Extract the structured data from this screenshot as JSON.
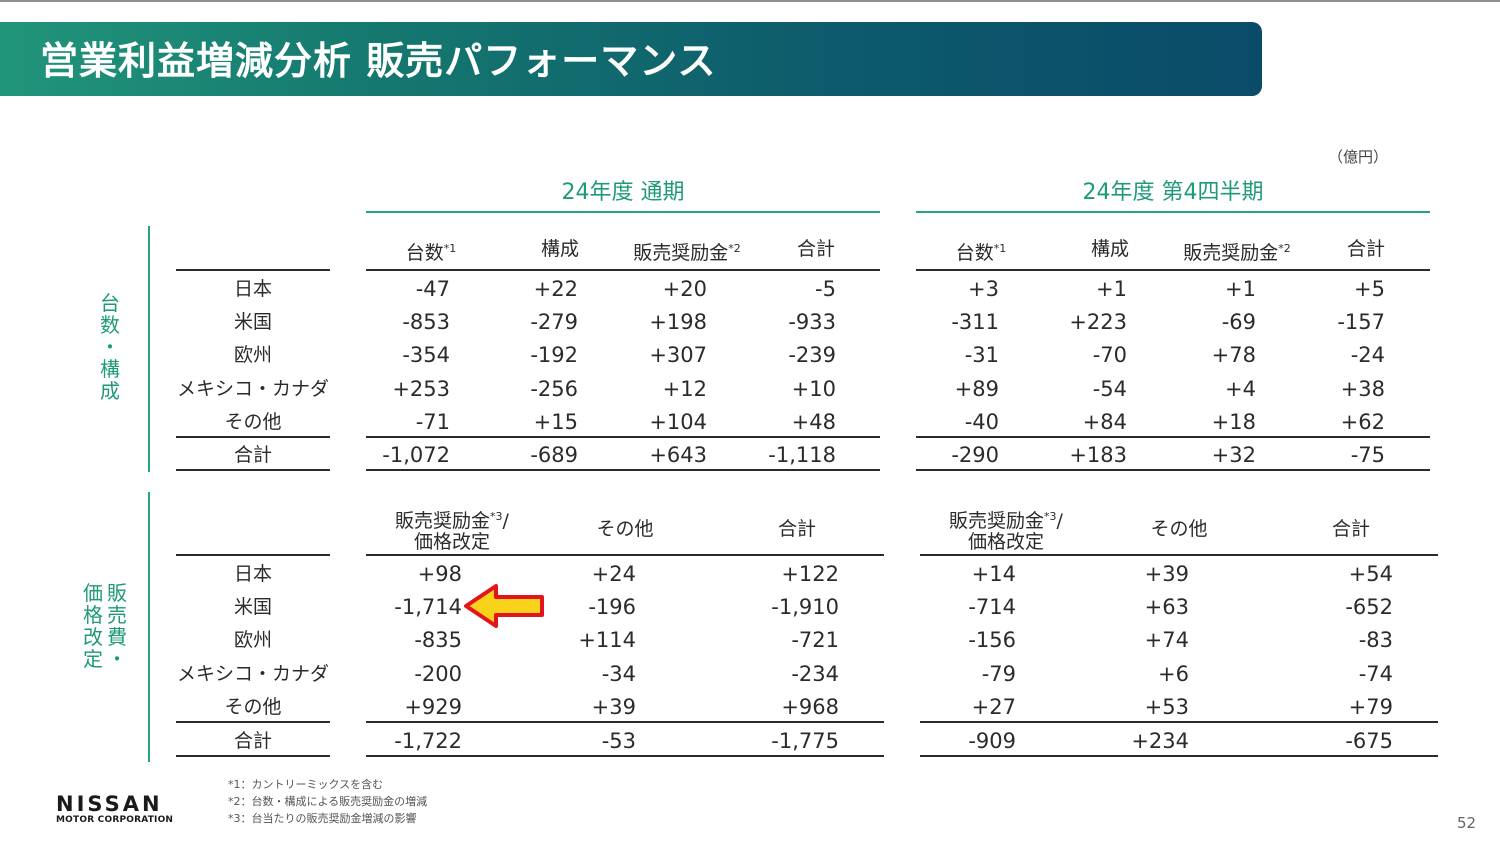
{
  "title": "営業利益増減分析 販売パフォーマンス",
  "unit": "（億円）",
  "periods": {
    "fy": "24年度 通期",
    "q4": "24年度 第4四半期"
  },
  "section_labels": {
    "top": [
      "台",
      "数",
      "・",
      "構",
      "成"
    ],
    "bottom_right": [
      "販",
      "売",
      "費",
      "・"
    ],
    "bottom_left": [
      "価",
      "格",
      "改",
      "定"
    ]
  },
  "top_headers": [
    {
      "text": "台数",
      "sup": "*1"
    },
    {
      "text": "構成",
      "sup": ""
    },
    {
      "text": "販売奨励金",
      "sup": "*2"
    },
    {
      "text": "合計",
      "sup": ""
    }
  ],
  "bottom_headers": [
    {
      "line1": "販売奨励金",
      "sup": "*3",
      "tail": "/",
      "line2": "価格改定"
    },
    {
      "line1": "その他"
    },
    {
      "line1": "合計"
    }
  ],
  "row_labels": [
    "日本",
    "米国",
    "欧州",
    "メキシコ・カナダ",
    "その他",
    "合計"
  ],
  "top_fy": [
    [
      "-47",
      "+22",
      "+20",
      "-5"
    ],
    [
      "-853",
      "-279",
      "+198",
      "-933"
    ],
    [
      "-354",
      "-192",
      "+307",
      "-239"
    ],
    [
      "+253",
      "-256",
      "+12",
      "+10"
    ],
    [
      "-71",
      "+15",
      "+104",
      "+48"
    ],
    [
      "-1,072",
      "-689",
      "+643",
      "-1,118"
    ]
  ],
  "top_q4": [
    [
      "+3",
      "+1",
      "+1",
      "+5"
    ],
    [
      "-311",
      "+223",
      "-69",
      "-157"
    ],
    [
      "-31",
      "-70",
      "+78",
      "-24"
    ],
    [
      "+89",
      "-54",
      "+4",
      "+38"
    ],
    [
      "-40",
      "+84",
      "+18",
      "+62"
    ],
    [
      "-290",
      "+183",
      "+32",
      "-75"
    ]
  ],
  "bottom_fy": [
    [
      "+98",
      "+24",
      "+122"
    ],
    [
      "-1,714",
      "-196",
      "-1,910"
    ],
    [
      "-835",
      "+114",
      "-721"
    ],
    [
      "-200",
      "-34",
      "-234"
    ],
    [
      "+929",
      "+39",
      "+968"
    ],
    [
      "-1,722",
      "-53",
      "-1,775"
    ]
  ],
  "bottom_q4": [
    [
      "+14",
      "+39",
      "+54"
    ],
    [
      "-714",
      "+63",
      "-652"
    ],
    [
      "-156",
      "+74",
      "-83"
    ],
    [
      "-79",
      "+6",
      "-74"
    ],
    [
      "+27",
      "+53",
      "+79"
    ],
    [
      "-909",
      "+234",
      "-675"
    ]
  ],
  "footnotes": [
    "*1：カントリーミックスを含む",
    "*2：台数・構成による販売奨励金の増減",
    "*3：台当たりの販売奨励金増減の影響"
  ],
  "logo": {
    "main": "NISSAN",
    "sub": "MOTOR CORPORATION"
  },
  "page_number": "52",
  "colors": {
    "accent": "#25a57f",
    "banner_start": "#21957a",
    "banner_end": "#0a4b69",
    "arrow_fill": "#f7d11a",
    "arrow_stroke": "#e3141b"
  },
  "annotation_icon": "red-yellow-pointer-arrow"
}
